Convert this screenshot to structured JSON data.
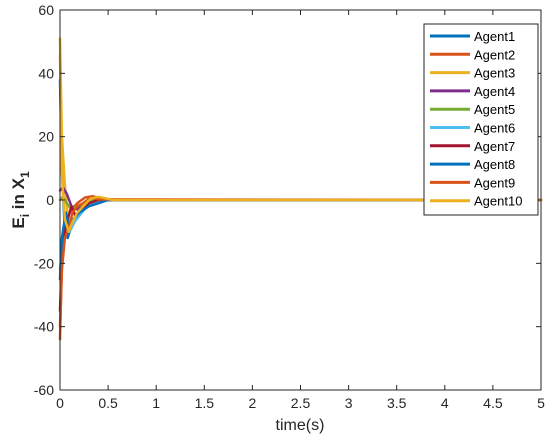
{
  "chart_data": {
    "type": "line",
    "title": "",
    "xlabel": "time(s)",
    "ylabel": {
      "base": "E",
      "sub_i": "i",
      "mid": " in X",
      "sub_1": "1"
    },
    "xlim": [
      0,
      5
    ],
    "ylim": [
      -60,
      60
    ],
    "xticks": [
      0,
      0.5,
      1,
      1.5,
      2,
      2.5,
      3,
      3.5,
      4,
      4.5,
      5
    ],
    "xtick_labels": [
      "0",
      "0.5",
      "1",
      "1.5",
      "2",
      "2.5",
      "3",
      "3.5",
      "4",
      "4.5",
      "5"
    ],
    "yticks": [
      -60,
      -40,
      -20,
      0,
      20,
      40,
      60
    ],
    "ytick_labels": [
      "-60",
      "-40",
      "-20",
      "0",
      "20",
      "40",
      "60"
    ],
    "grid": false,
    "legend_position": "top-right",
    "series": [
      {
        "name": "Agent1",
        "color": "#0072BD",
        "points": [
          [
            0,
            38
          ],
          [
            0.02,
            10
          ],
          [
            0.05,
            -10
          ],
          [
            0.08,
            -12
          ],
          [
            0.12,
            -8
          ],
          [
            0.16,
            -6
          ],
          [
            0.2,
            -4
          ],
          [
            0.26,
            -2
          ],
          [
            0.32,
            -1
          ],
          [
            0.4,
            0
          ],
          [
            0.6,
            0
          ],
          [
            5,
            0
          ]
        ]
      },
      {
        "name": "Agent2",
        "color": "#D95319",
        "points": [
          [
            0,
            -44
          ],
          [
            0.02,
            -20
          ],
          [
            0.05,
            -8
          ],
          [
            0.08,
            -5
          ],
          [
            0.12,
            -3
          ],
          [
            0.18,
            -1
          ],
          [
            0.26,
            0.8
          ],
          [
            0.34,
            1.2
          ],
          [
            0.42,
            0.5
          ],
          [
            0.6,
            0
          ],
          [
            5,
            0
          ]
        ]
      },
      {
        "name": "Agent3",
        "color": "#EDB120",
        "points": [
          [
            0,
            51
          ],
          [
            0.02,
            20
          ],
          [
            0.05,
            5
          ],
          [
            0.08,
            -5
          ],
          [
            0.12,
            -8
          ],
          [
            0.16,
            -6
          ],
          [
            0.22,
            -3
          ],
          [
            0.3,
            -1
          ],
          [
            0.4,
            0.5
          ],
          [
            0.6,
            0
          ],
          [
            5,
            0
          ]
        ]
      },
      {
        "name": "Agent4",
        "color": "#7E2F8E",
        "points": [
          [
            0,
            3
          ],
          [
            0.03,
            4
          ],
          [
            0.07,
            2
          ],
          [
            0.12,
            -2
          ],
          [
            0.18,
            -3
          ],
          [
            0.26,
            -1
          ],
          [
            0.36,
            0
          ],
          [
            5,
            0
          ]
        ]
      },
      {
        "name": "Agent5",
        "color": "#77AC30",
        "points": [
          [
            0,
            0
          ],
          [
            0.03,
            1
          ],
          [
            0.07,
            -1
          ],
          [
            0.12,
            -3
          ],
          [
            0.18,
            -2
          ],
          [
            0.26,
            -1
          ],
          [
            0.36,
            0
          ],
          [
            5,
            0
          ]
        ]
      },
      {
        "name": "Agent6",
        "color": "#4DBEEE",
        "points": [
          [
            0,
            -22
          ],
          [
            0.02,
            -15
          ],
          [
            0.06,
            -8
          ],
          [
            0.1,
            -10
          ],
          [
            0.15,
            -7
          ],
          [
            0.2,
            -5
          ],
          [
            0.28,
            -2
          ],
          [
            0.36,
            -1
          ],
          [
            0.45,
            0
          ],
          [
            5,
            0
          ]
        ]
      },
      {
        "name": "Agent7",
        "color": "#A2142F",
        "points": [
          [
            0,
            -35
          ],
          [
            0.02,
            -18
          ],
          [
            0.05,
            -10
          ],
          [
            0.08,
            -6
          ],
          [
            0.12,
            -2
          ],
          [
            0.16,
            -5
          ],
          [
            0.22,
            -3
          ],
          [
            0.3,
            -1
          ],
          [
            0.4,
            0
          ],
          [
            5,
            0
          ]
        ]
      },
      {
        "name": "Agent8",
        "color": "#0072BD",
        "points": [
          [
            0,
            -25
          ],
          [
            0.02,
            -12
          ],
          [
            0.06,
            -4
          ],
          [
            0.1,
            -9
          ],
          [
            0.14,
            -6
          ],
          [
            0.2,
            -4
          ],
          [
            0.3,
            -2
          ],
          [
            0.4,
            -1
          ],
          [
            0.5,
            0
          ],
          [
            5,
            0
          ]
        ]
      },
      {
        "name": "Agent9",
        "color": "#D95319",
        "points": [
          [
            0,
            -40
          ],
          [
            0.02,
            -22
          ],
          [
            0.05,
            -12
          ],
          [
            0.09,
            -9
          ],
          [
            0.13,
            -4
          ],
          [
            0.18,
            -2
          ],
          [
            0.24,
            -1
          ],
          [
            0.32,
            0.8
          ],
          [
            0.4,
            0.2
          ],
          [
            5,
            0
          ]
        ]
      },
      {
        "name": "Agent10",
        "color": "#EDB120",
        "points": [
          [
            0,
            46
          ],
          [
            0.02,
            8
          ],
          [
            0.05,
            -6
          ],
          [
            0.09,
            -10
          ],
          [
            0.13,
            -7
          ],
          [
            0.18,
            -4
          ],
          [
            0.24,
            -2
          ],
          [
            0.32,
            0.5
          ],
          [
            0.4,
            1
          ],
          [
            0.55,
            0
          ],
          [
            5,
            0
          ]
        ]
      }
    ]
  }
}
